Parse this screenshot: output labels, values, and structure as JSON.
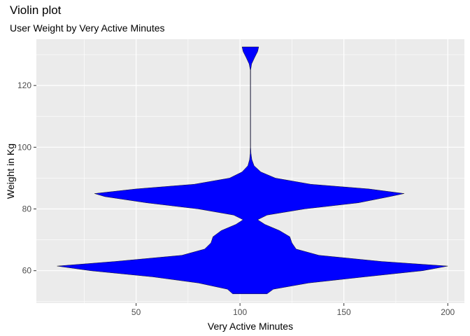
{
  "chart_data": {
    "type": "violin",
    "title": "Violin plot",
    "subtitle": "User Weight by Very Active Minutes",
    "xlabel": "Very Active Minutes",
    "ylabel": "Weight in Kg",
    "xlim": [
      2,
      208
    ],
    "ylim": [
      49.5,
      135
    ],
    "x_ticks": [
      50,
      100,
      150,
      200
    ],
    "y_ticks": [
      60,
      80,
      100,
      120
    ],
    "grid": true,
    "fill_color": "#0000ff",
    "panel_color": "#ebebeb",
    "violin": {
      "center_x": 105,
      "profile": [
        {
          "y": 52.5,
          "left": 96.5,
          "right": 113
        },
        {
          "y": 54,
          "left": 94,
          "right": 116
        },
        {
          "y": 56,
          "left": 80,
          "right": 133
        },
        {
          "y": 58,
          "left": 58,
          "right": 160
        },
        {
          "y": 60,
          "left": 28,
          "right": 188
        },
        {
          "y": 61.5,
          "left": 12,
          "right": 200
        },
        {
          "y": 63,
          "left": 40,
          "right": 168
        },
        {
          "y": 65,
          "left": 72,
          "right": 138
        },
        {
          "y": 67,
          "left": 83,
          "right": 127
        },
        {
          "y": 69,
          "left": 86,
          "right": 125
        },
        {
          "y": 71,
          "left": 87,
          "right": 124
        },
        {
          "y": 73,
          "left": 91,
          "right": 119
        },
        {
          "y": 75,
          "left": 98,
          "right": 112
        },
        {
          "y": 76.5,
          "left": 101.5,
          "right": 108.5
        },
        {
          "y": 78,
          "left": 97,
          "right": 113
        },
        {
          "y": 80,
          "left": 80,
          "right": 131
        },
        {
          "y": 82,
          "left": 55,
          "right": 157
        },
        {
          "y": 84,
          "left": 35,
          "right": 172
        },
        {
          "y": 85,
          "left": 30,
          "right": 179
        },
        {
          "y": 86.5,
          "left": 50,
          "right": 162
        },
        {
          "y": 88,
          "left": 78,
          "right": 134
        },
        {
          "y": 90,
          "left": 95,
          "right": 117
        },
        {
          "y": 92,
          "left": 101,
          "right": 110
        },
        {
          "y": 94,
          "left": 103.8,
          "right": 106.8
        },
        {
          "y": 96,
          "left": 104.6,
          "right": 105.7
        },
        {
          "y": 98,
          "left": 104.9,
          "right": 105.3
        },
        {
          "y": 100,
          "left": 104.95,
          "right": 105.15
        },
        {
          "y": 125,
          "left": 104.95,
          "right": 105.15
        },
        {
          "y": 127,
          "left": 104.4,
          "right": 105.6
        },
        {
          "y": 129,
          "left": 103,
          "right": 107
        },
        {
          "y": 131,
          "left": 101.5,
          "right": 108.5
        },
        {
          "y": 132.5,
          "left": 101,
          "right": 109
        }
      ]
    }
  }
}
